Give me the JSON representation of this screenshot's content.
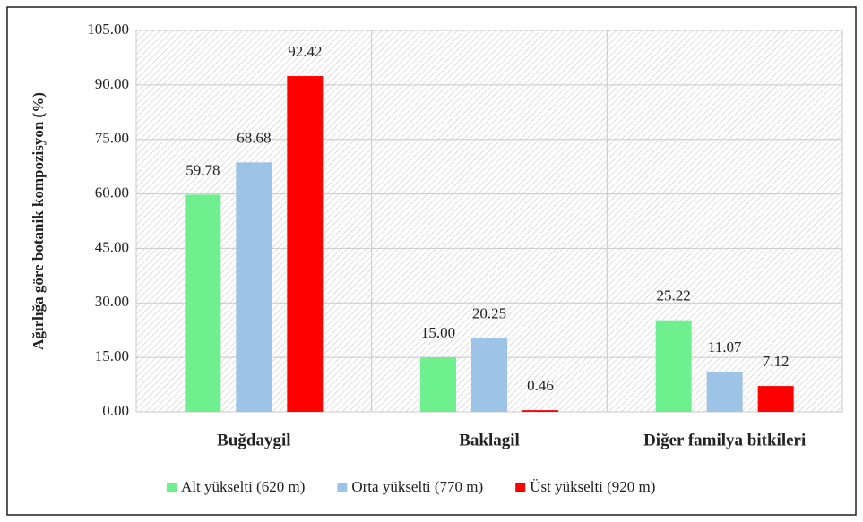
{
  "chart_data": {
    "type": "bar",
    "y_label": "Ağırlığa göre botanik kompozisyon (%)",
    "categories": [
      "Buğdaygil",
      "Baklagil",
      "Diğer familya bitkileri"
    ],
    "series": [
      {
        "name": "Alt yükselti (620 m)",
        "color": "#6ef08f",
        "values": [
          59.78,
          15.0,
          25.22
        ],
        "value_labels": [
          "59.78",
          "15.00",
          "25.22"
        ]
      },
      {
        "name": "Orta yükselti (770 m)",
        "color": "#9dc3e6",
        "values": [
          68.68,
          20.25,
          11.07
        ],
        "value_labels": [
          "68.68",
          "20.25",
          "11.07"
        ]
      },
      {
        "name": "Üst yükselti (920 m)",
        "color": "#ff0000",
        "values": [
          92.42,
          0.46,
          7.12
        ],
        "value_labels": [
          "92.42",
          "0.46",
          "7.12"
        ]
      }
    ],
    "ylim": [
      0,
      105
    ],
    "yticks": [
      {
        "value": 0,
        "label": "0.00"
      },
      {
        "value": 15,
        "label": "15.00"
      },
      {
        "value": 30,
        "label": "30.00"
      },
      {
        "value": 45,
        "label": "45.00"
      },
      {
        "value": 60,
        "label": "60.00"
      },
      {
        "value": 75,
        "label": "75.00"
      },
      {
        "value": 90,
        "label": "90.00"
      },
      {
        "value": 105,
        "label": "105.00"
      }
    ],
    "grid": true,
    "legend": "bottom"
  }
}
